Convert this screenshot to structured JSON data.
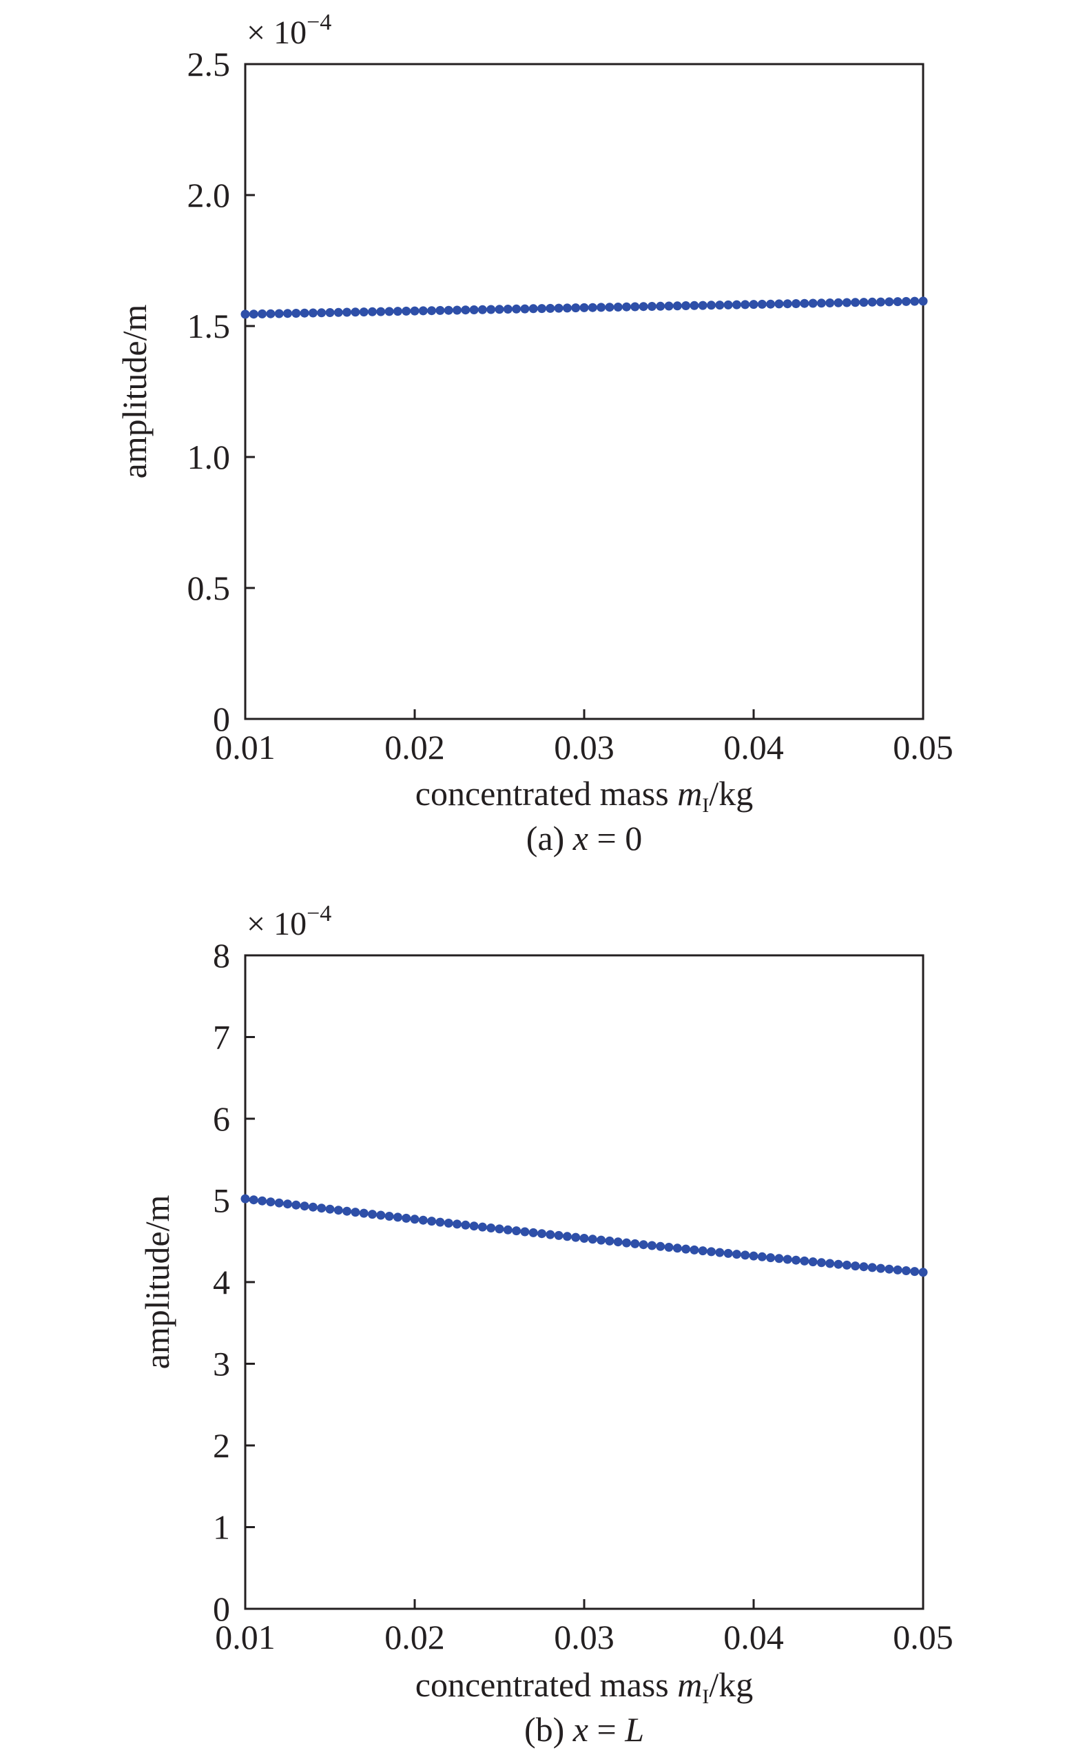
{
  "chart_data": [
    {
      "type": "line",
      "caption": {
        "prefix": "(a) ",
        "var": "x",
        "rest": " = 0"
      },
      "xlabel": {
        "text": "concentrated mass ",
        "var": "m",
        "sub": "I",
        "unit": "/kg"
      },
      "ylabel": "amplitude/m",
      "y_multiplier": {
        "times": "× 10",
        "exp": "−4"
      },
      "xlim": [
        0.01,
        0.05
      ],
      "ylim": [
        0,
        2.5
      ],
      "xticks": [
        "0.01",
        "0.02",
        "0.03",
        "0.04",
        "0.05"
      ],
      "yticks": [
        "0",
        "0.5",
        "1.0",
        "1.5",
        "2.0",
        "2.5"
      ],
      "grid": false,
      "series": [
        {
          "color": "#2e4fa8",
          "marker": "dot",
          "n_points": 81,
          "x_start": 0.01,
          "x_end": 0.05,
          "y_start": 1.545,
          "y_end": 1.595,
          "curve": 0.0
        }
      ]
    },
    {
      "type": "line",
      "caption": {
        "prefix": "(b) ",
        "var": "x",
        "rest": " = ",
        "var2": "L"
      },
      "xlabel": {
        "text": "concentrated mass ",
        "var": "m",
        "sub": "I",
        "unit": "/kg"
      },
      "ylabel": "amplitude/m",
      "y_multiplier": {
        "times": "× 10",
        "exp": "−4"
      },
      "xlim": [
        0.01,
        0.05
      ],
      "ylim": [
        0,
        8
      ],
      "xticks": [
        "0.01",
        "0.02",
        "0.03",
        "0.04",
        "0.05"
      ],
      "yticks": [
        "0",
        "1",
        "2",
        "3",
        "4",
        "5",
        "6",
        "7",
        "8"
      ],
      "grid": false,
      "series": [
        {
          "color": "#2e4fa8",
          "marker": "dot",
          "n_points": 81,
          "x_start": 0.01,
          "x_end": 0.05,
          "y_start": 5.02,
          "y_end": 4.12,
          "curve": 0.15
        }
      ]
    }
  ]
}
